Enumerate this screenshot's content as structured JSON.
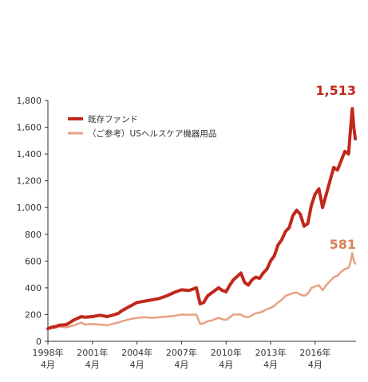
{
  "chart_data": {
    "type": "line",
    "title": "",
    "xlabel": "",
    "ylabel": "",
    "ylim": [
      0,
      1800
    ],
    "yticks": [
      0,
      200,
      400,
      600,
      800,
      1000,
      1200,
      1400,
      1600,
      1800
    ],
    "ytick_labels": [
      "0",
      "200",
      "400",
      "600",
      "800",
      "1,000",
      "1,200",
      "1,400",
      "1,600",
      "1,800"
    ],
    "xlim": [
      1998.25,
      2019.0
    ],
    "xticks": [
      {
        "value": 1998.25,
        "year": "1998年",
        "month": "4月"
      },
      {
        "value": 2001.25,
        "year": "2001年",
        "month": "4月"
      },
      {
        "value": 2004.25,
        "year": "2004年",
        "month": "4月"
      },
      {
        "value": 2007.25,
        "year": "2007年",
        "month": "4月"
      },
      {
        "value": 2010.25,
        "year": "2010年",
        "month": "4月"
      },
      {
        "value": 2013.25,
        "year": "2013年",
        "month": "4月"
      },
      {
        "value": 2016.25,
        "year": "2016年",
        "month": "4月"
      }
    ],
    "grid": false,
    "legend_position": "top-left",
    "series": [
      {
        "name": "既存ファンド",
        "color": "#c1281b",
        "end_label": "1,513",
        "x": [
          1998.25,
          1998.5,
          1998.75,
          1999.0,
          1999.5,
          2000.0,
          2000.5,
          2000.75,
          2001.25,
          2001.75,
          2002.25,
          2002.75,
          2003.0,
          2003.25,
          2003.75,
          2004.25,
          2004.75,
          2005.25,
          2005.75,
          2006.25,
          2006.75,
          2007.25,
          2007.75,
          2008.25,
          2008.5,
          2008.75,
          2009.0,
          2009.25,
          2009.75,
          2010.0,
          2010.25,
          2010.5,
          2010.75,
          2011.25,
          2011.5,
          2011.75,
          2012.0,
          2012.25,
          2012.5,
          2012.75,
          2013.0,
          2013.25,
          2013.5,
          2013.75,
          2014.0,
          2014.25,
          2014.5,
          2014.75,
          2015.0,
          2015.25,
          2015.5,
          2015.75,
          2016.0,
          2016.25,
          2016.5,
          2016.75,
          2017.0,
          2017.25,
          2017.5,
          2017.75,
          2018.0,
          2018.25,
          2018.5,
          2018.6,
          2018.75,
          2018.85,
          2018.95
        ],
        "y": [
          95,
          105,
          110,
          120,
          125,
          160,
          185,
          180,
          185,
          195,
          185,
          200,
          210,
          230,
          260,
          290,
          300,
          310,
          320,
          340,
          365,
          385,
          380,
          400,
          280,
          290,
          340,
          360,
          400,
          380,
          370,
          420,
          460,
          510,
          440,
          420,
          460,
          480,
          470,
          510,
          540,
          600,
          640,
          720,
          760,
          820,
          850,
          940,
          980,
          950,
          860,
          880,
          1020,
          1100,
          1140,
          1000,
          1100,
          1200,
          1300,
          1280,
          1350,
          1420,
          1400,
          1550,
          1740,
          1600,
          1513
        ]
      },
      {
        "name": "（ご参考）USヘルスケア機器用品",
        "color": "#e8a183",
        "end_label": "581",
        "x": [
          1998.25,
          1998.5,
          1998.75,
          1999.0,
          1999.5,
          2000.0,
          2000.5,
          2000.75,
          2001.25,
          2001.75,
          2002.25,
          2002.75,
          2003.0,
          2003.25,
          2003.75,
          2004.25,
          2004.75,
          2005.25,
          2005.75,
          2006.25,
          2006.75,
          2007.25,
          2007.75,
          2008.25,
          2008.5,
          2008.75,
          2009.0,
          2009.25,
          2009.75,
          2010.0,
          2010.25,
          2010.5,
          2010.75,
          2011.25,
          2011.5,
          2011.75,
          2012.0,
          2012.25,
          2012.5,
          2012.75,
          2013.0,
          2013.25,
          2013.5,
          2013.75,
          2014.0,
          2014.25,
          2014.5,
          2014.75,
          2015.0,
          2015.25,
          2015.5,
          2015.75,
          2016.0,
          2016.25,
          2016.5,
          2016.75,
          2017.0,
          2017.25,
          2017.5,
          2017.75,
          2018.0,
          2018.25,
          2018.5,
          2018.6,
          2018.75,
          2018.85,
          2018.95
        ],
        "y": [
          95,
          100,
          100,
          110,
          105,
          120,
          140,
          125,
          130,
          125,
          120,
          135,
          140,
          150,
          165,
          175,
          180,
          175,
          180,
          185,
          190,
          200,
          198,
          200,
          130,
          135,
          150,
          155,
          175,
          165,
          160,
          180,
          200,
          200,
          185,
          180,
          195,
          210,
          215,
          225,
          240,
          250,
          265,
          290,
          310,
          340,
          350,
          360,
          365,
          350,
          340,
          355,
          400,
          410,
          420,
          380,
          420,
          450,
          480,
          490,
          520,
          540,
          550,
          580,
          660,
          600,
          581
        ]
      }
    ]
  }
}
